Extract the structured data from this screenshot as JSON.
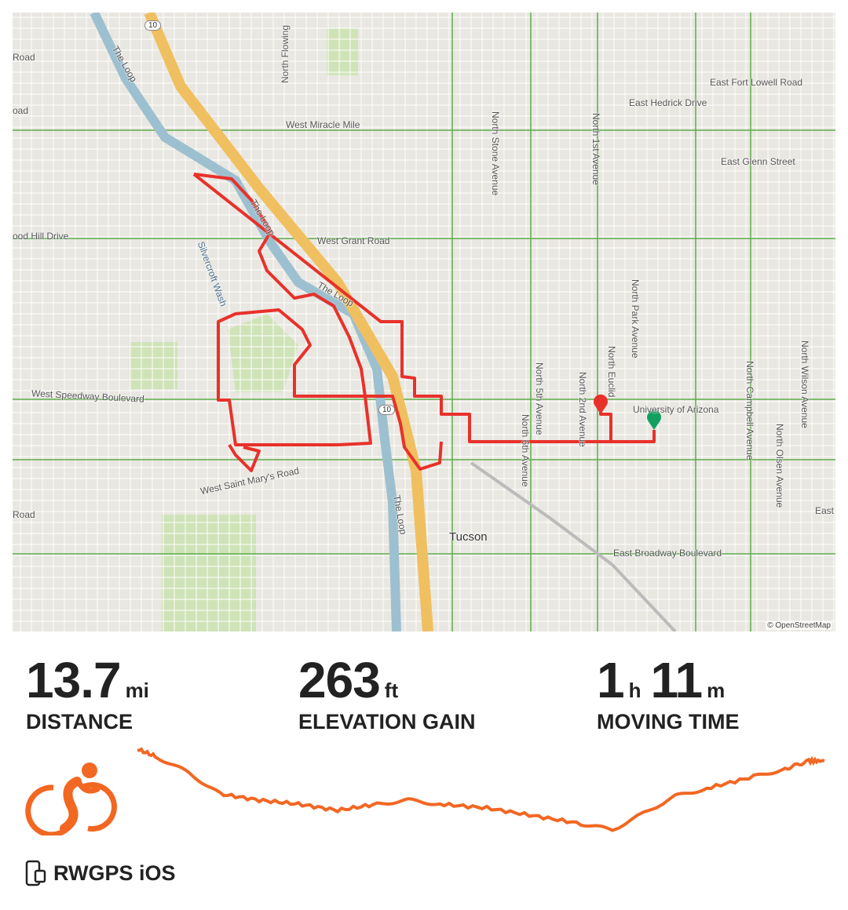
{
  "map": {
    "attribution": "© OpenStreetMap",
    "colors": {
      "route": "#e8312a",
      "land": "#e9e7e1",
      "road": "#ffffff",
      "highway": "#f0c060",
      "river": "#9dc0d0",
      "park": "#cfe3b8",
      "start": "#12a060",
      "end": "#e8312a"
    },
    "highway_shield": "10",
    "labels": {
      "miracle": "West Miracle Mile",
      "grant": "West Grant Road",
      "speedway": "West Speedway Boulevard",
      "stmary": "West Saint Mary's Road",
      "fortlowell": "East Fort Lowell Road",
      "hedrick": "East Hedrick Drive",
      "glenn": "East Glenn Street",
      "broadway": "East Broadway Boulevard",
      "goodhill": "ood Hill Drive",
      "road1": "Road",
      "road2": "oad",
      "road3": "Road",
      "east": "East",
      "uofa": "University of Arizona",
      "tucson": "Tucson",
      "loop1": "The Loop",
      "loop2": "The Loop",
      "loop3": "The Loop",
      "loop4": "The Loop",
      "wash": "Silvercroft Wash",
      "stone": "North Stone Avenue",
      "first": "North 1st Avenue",
      "park": "North Park Avenue",
      "euclid": "North Euclid",
      "second": "North 2nd Avenue",
      "fifth": "North 5th Avenue",
      "sixth": "North 6th Avenue",
      "campbell": "North Campbell Avenue",
      "wilson": "North Wilson Avenue",
      "olsen": "North Olsen Avenue",
      "flowing": "North Flowing"
    }
  },
  "stats": {
    "distance": {
      "value": "13.7",
      "unit": "mi",
      "label": "DISTANCE"
    },
    "elevation": {
      "value": "263",
      "unit": "ft",
      "label": "ELEVATION GAIN"
    },
    "moving_time": {
      "hours": "1",
      "hours_unit": "h",
      "minutes": "11",
      "minutes_unit": "m",
      "label": "MOVING TIME"
    }
  },
  "profile": {
    "color": "#f26722"
  },
  "activity_icon": "cyclist-icon",
  "device": {
    "icon": "phone-watch-icon",
    "label": "RWGPS iOS"
  }
}
